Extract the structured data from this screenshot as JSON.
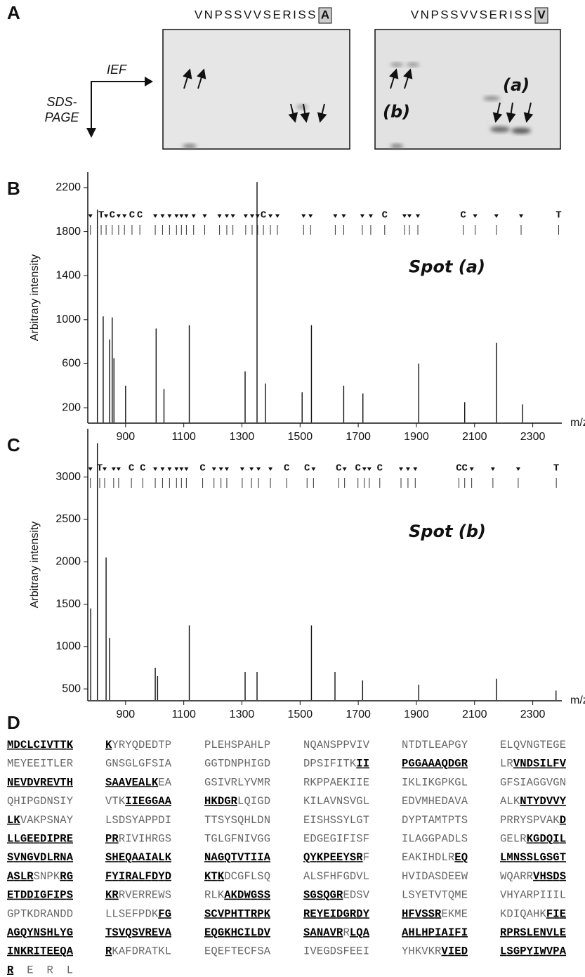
{
  "panel_a": {
    "label": "A",
    "ief": "IEF",
    "sds": [
      "SDS-",
      "PAGE"
    ],
    "gels": [
      {
        "sequence": "VNPSSVVSERISS",
        "residue": "A"
      },
      {
        "sequence": "VNPSSVVSERISS",
        "residue": "V",
        "spots": [
          "(a)",
          "(b)"
        ]
      }
    ]
  },
  "chart_data": [
    {
      "type": "spectrum",
      "label": "B",
      "ylabel": "Arbitrary intensity",
      "xlabel": "m/z",
      "annotation": "Spot (a)",
      "color": "#111",
      "xlim": [
        770,
        2400
      ],
      "ylim": [
        60,
        2340
      ],
      "xticks": [
        900,
        1100,
        1300,
        1500,
        1700,
        1900,
        2100,
        2300
      ],
      "yticks": [
        200,
        600,
        1000,
        1400,
        1800,
        2200
      ],
      "x": [
        803,
        823,
        845,
        854,
        860,
        900,
        1005,
        1032,
        1119,
        1311,
        1352,
        1381,
        1507,
        1539,
        1650,
        1716,
        1908,
        2066,
        2175,
        2265
      ],
      "values": [
        2000,
        1030,
        820,
        1020,
        650,
        400,
        920,
        370,
        950,
        530,
        2250,
        420,
        340,
        950,
        400,
        330,
        600,
        250,
        790,
        230
      ],
      "markers": {
        "x": [
          779,
          816,
          833,
          854,
          876,
          896,
          922,
          949,
          1002,
          1027,
          1051,
          1075,
          1092,
          1109,
          1134,
          1172,
          1223,
          1248,
          1269,
          1313,
          1335,
          1354,
          1374,
          1398,
          1422,
          1512,
          1536,
          1621,
          1650,
          1714,
          1743,
          1791,
          1859,
          1876,
          1905,
          2061,
          2102,
          2175,
          2260,
          2389
        ],
        "labels": [
          null,
          "T",
          null,
          "C",
          null,
          null,
          "C",
          "C",
          null,
          null,
          null,
          null,
          null,
          null,
          null,
          null,
          null,
          null,
          null,
          null,
          null,
          null,
          "C",
          null,
          null,
          null,
          null,
          null,
          null,
          null,
          null,
          "C",
          null,
          null,
          null,
          "C",
          null,
          null,
          null,
          "T"
        ]
      }
    },
    {
      "type": "spectrum",
      "label": "C",
      "ylabel": "Arbitrary intensity",
      "xlabel": "m/z",
      "annotation": "Spot (b)",
      "color": "#111",
      "xlim": [
        770,
        2400
      ],
      "ylim": [
        360,
        3570
      ],
      "xticks": [
        900,
        1100,
        1300,
        1500,
        1700,
        1900,
        2100,
        2300
      ],
      "yticks": [
        500,
        1000,
        1500,
        2000,
        2500,
        3000
      ],
      "x": [
        780,
        803,
        833,
        845,
        1002,
        1010,
        1119,
        1311,
        1352,
        1539,
        1620,
        1715,
        1908,
        2175,
        2380
      ],
      "values": [
        1450,
        3400,
        2050,
        1100,
        750,
        650,
        1250,
        700,
        700,
        1250,
        700,
        600,
        550,
        620,
        480
      ],
      "markers": {
        "x": [
          779,
          811,
          828,
          859,
          876,
          920,
          959,
          1002,
          1027,
          1051,
          1075,
          1092,
          1109,
          1165,
          1204,
          1228,
          1248,
          1301,
          1333,
          1357,
          1398,
          1454,
          1524,
          1546,
          1633,
          1653,
          1699,
          1721,
          1738,
          1774,
          1847,
          1871,
          1896,
          2046,
          2066,
          2090,
          2163,
          2250,
          2381
        ],
        "labels": [
          null,
          "T",
          null,
          null,
          null,
          "C",
          "C",
          null,
          null,
          null,
          null,
          null,
          null,
          "C",
          null,
          null,
          null,
          null,
          null,
          null,
          null,
          "C",
          "C",
          null,
          "C",
          null,
          "C",
          null,
          null,
          "C",
          null,
          null,
          null,
          "C",
          "C",
          null,
          null,
          null,
          "T"
        ]
      }
    }
  ],
  "panel_d": {
    "label": "D",
    "rows": [
      [
        [
          {
            "text": "MDCLCIVTTK",
            "bold": true
          }
        ],
        [
          {
            "text": "K",
            "bold": true
          },
          {
            "text": "YRYQDEDTP",
            "bold": false
          }
        ],
        [
          {
            "text": "PLEHSPAHLP",
            "bold": false
          }
        ],
        [
          {
            "text": "NQANSPPVIV",
            "bold": false
          }
        ],
        [
          {
            "text": "NTDTLEAPGY",
            "bold": false
          }
        ],
        [
          {
            "text": "ELQVNGTEGE",
            "bold": false
          }
        ]
      ],
      [
        [
          {
            "text": "MEYEEITLER",
            "bold": false
          }
        ],
        [
          {
            "text": "GNSGLGFSIA",
            "bold": false
          }
        ],
        [
          {
            "text": "GGTDNPHIGD",
            "bold": false
          }
        ],
        [
          {
            "text": "DPSIFITK",
            "bold": false
          },
          {
            "text": "II",
            "bold": true
          }
        ],
        [
          {
            "text": "PGGAAAQDGR",
            "bold": true
          }
        ],
        [
          {
            "text": "LR",
            "bold": false
          },
          {
            "text": "VNDSILFV",
            "bold": true
          }
        ]
      ],
      [
        [
          {
            "text": "NEVDVREVTH",
            "bold": true
          }
        ],
        [
          {
            "text": "SAAVEALK",
            "bold": true
          },
          {
            "text": "EA",
            "bold": false
          }
        ],
        [
          {
            "text": "GSIVRLYVMR",
            "bold": false
          }
        ],
        [
          {
            "text": "RKPPAEKIIE",
            "bold": false
          }
        ],
        [
          {
            "text": "IKLIKGPKGL",
            "bold": false
          }
        ],
        [
          {
            "text": "GFSIAGGVGN",
            "bold": false
          }
        ]
      ],
      [
        [
          {
            "text": "QHIPGDNSIY",
            "bold": false
          }
        ],
        [
          {
            "text": "VTK",
            "bold": false
          },
          {
            "text": "IIEGGAA",
            "bold": true
          }
        ],
        [
          {
            "text": "HKDGR",
            "bold": true
          },
          {
            "text": "LQIGD",
            "bold": false
          }
        ],
        [
          {
            "text": "KILAVNSVGL",
            "bold": false
          }
        ],
        [
          {
            "text": "EDVMHEDAVA",
            "bold": false
          }
        ],
        [
          {
            "text": "ALK",
            "bold": false
          },
          {
            "text": "NTYDVVY",
            "bold": true
          }
        ]
      ],
      [
        [
          {
            "text": "LK",
            "bold": true
          },
          {
            "text": "VAKPSNAY",
            "bold": false
          }
        ],
        [
          {
            "text": "LSDSYAPPDI",
            "bold": false
          }
        ],
        [
          {
            "text": "TTSYSQHLDN",
            "bold": false
          }
        ],
        [
          {
            "text": "EISHSSYLGT",
            "bold": false
          }
        ],
        [
          {
            "text": "DYPTAMTPTS",
            "bold": false
          }
        ],
        [
          {
            "text": "PRRYSPVAK",
            "bold": false
          },
          {
            "text": "D",
            "bold": true
          }
        ]
      ],
      [
        [
          {
            "text": "LLGEEDIPRE",
            "bold": true
          }
        ],
        [
          {
            "text": "PR",
            "bold": true
          },
          {
            "text": "RIVIHRGS",
            "bold": false
          }
        ],
        [
          {
            "text": "TGLGFNIVGG",
            "bold": false
          }
        ],
        [
          {
            "text": "EDGEGIFISF",
            "bold": false
          }
        ],
        [
          {
            "text": "ILAGGPADLS",
            "bold": false
          }
        ],
        [
          {
            "text": "GELR",
            "bold": false
          },
          {
            "text": "KGDQIL",
            "bold": true
          }
        ]
      ],
      [
        [
          {
            "text": "SVNGVDLRNA",
            "bold": true
          }
        ],
        [
          {
            "text": "SHEQAAIALK",
            "bold": true
          }
        ],
        [
          {
            "text": "NAGQTVTIIA",
            "bold": true
          }
        ],
        [
          {
            "text": "QYKPEEYSR",
            "bold": true
          },
          {
            "text": "F",
            "bold": false
          }
        ],
        [
          {
            "text": "EAKIHDLR",
            "bold": false
          },
          {
            "text": "EQ",
            "bold": true
          }
        ],
        [
          {
            "text": "LMNSSLGSGT",
            "bold": true
          }
        ]
      ],
      [
        [
          {
            "text": "ASLR",
            "bold": true
          },
          {
            "text": "SNPK",
            "bold": false
          },
          {
            "text": "RG",
            "bold": true
          }
        ],
        [
          {
            "text": "FYIRALFDYD",
            "bold": true
          }
        ],
        [
          {
            "text": "KTK",
            "bold": true
          },
          {
            "text": "DCGFLSQ",
            "bold": false
          }
        ],
        [
          {
            "text": "ALSFHFGDVL",
            "bold": false
          }
        ],
        [
          {
            "text": "HVIDASDEEW",
            "bold": false
          }
        ],
        [
          {
            "text": "WQARR",
            "bold": false
          },
          {
            "text": "VHSDS",
            "bold": true
          }
        ]
      ],
      [
        [
          {
            "text": "ETDDIGFIPS",
            "bold": true
          }
        ],
        [
          {
            "text": "KR",
            "bold": true
          },
          {
            "text": "RVERREWS",
            "bold": false
          }
        ],
        [
          {
            "text": "RLK",
            "bold": false
          },
          {
            "text": "AKDWGSS",
            "bold": true
          }
        ],
        [
          {
            "text": "SGSQGR",
            "bold": true
          },
          {
            "text": "EDSV",
            "bold": false
          }
        ],
        [
          {
            "text": "LSYETVTQME",
            "bold": false
          }
        ],
        [
          {
            "text": "VHYARPIIIL",
            "bold": false
          }
        ]
      ],
      [
        [
          {
            "text": "GPTKDRANDD",
            "bold": false
          }
        ],
        [
          {
            "text": "LLSEFPDK",
            "bold": false
          },
          {
            "text": "FG",
            "bold": true
          }
        ],
        [
          {
            "text": "SCVPHTTRPK",
            "bold": true
          }
        ],
        [
          {
            "text": "REYEIDGRDY",
            "bold": true
          }
        ],
        [
          {
            "text": "HFVSSR",
            "bold": true
          },
          {
            "text": "EKME",
            "bold": false
          }
        ],
        [
          {
            "text": "KDIQAHK",
            "bold": false
          },
          {
            "text": "FIE",
            "bold": true
          }
        ]
      ],
      [
        [
          {
            "text": "AGQYNSHLYG",
            "bold": true
          }
        ],
        [
          {
            "text": "TSVQSVREVA",
            "bold": true
          }
        ],
        [
          {
            "text": "EQGKHCILDV",
            "bold": true
          }
        ],
        [
          {
            "text": "SANAVR",
            "bold": true
          },
          {
            "text": "R",
            "bold": false
          },
          {
            "text": "LQA",
            "bold": true
          }
        ],
        [
          {
            "text": "AHLHPIAIFI",
            "bold": true
          }
        ],
        [
          {
            "text": "RPRSLENVLE",
            "bold": true
          }
        ]
      ],
      [
        [
          {
            "text": "INKRITEEQA",
            "bold": true
          }
        ],
        [
          {
            "text": "R",
            "bold": true
          },
          {
            "text": "KAFDRATKL",
            "bold": false
          }
        ],
        [
          {
            "text": "EQEFTECFSA",
            "bold": false
          }
        ],
        [
          {
            "text": "IVEGDSFEEI",
            "bold": false
          }
        ],
        [
          {
            "text": "YHKVKR",
            "bold": false
          },
          {
            "text": "VIED",
            "bold": true
          }
        ],
        [
          {
            "text": "LSGPYIWVPA",
            "bold": true
          }
        ]
      ],
      [
        [
          {
            "text": "R",
            "bold": true
          },
          {
            "text": "ERL",
            "bold": false
          }
        ]
      ]
    ]
  }
}
